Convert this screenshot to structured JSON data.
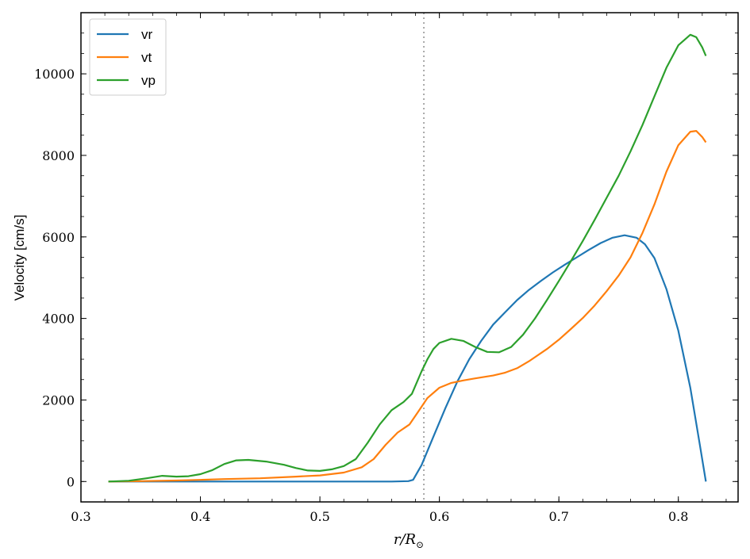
{
  "chart_data": {
    "type": "line",
    "ylabel": "Velocity [cm/s]",
    "xlabel_main": "r/R",
    "xlabel_sub": "⊙",
    "xlim": [
      0.3,
      0.85
    ],
    "ylim": [
      -500,
      11500
    ],
    "x_ticks": [
      0.3,
      0.4,
      0.5,
      0.6,
      0.7,
      0.8
    ],
    "x_tick_labels": [
      "0.3",
      "0.4",
      "0.5",
      "0.6",
      "0.7",
      "0.8"
    ],
    "x_minor_step": 0.02,
    "y_ticks": [
      0,
      2000,
      4000,
      6000,
      8000,
      10000
    ],
    "y_tick_labels": [
      "0",
      "2000",
      "4000",
      "6000",
      "8000",
      "10000"
    ],
    "y_minor_step": 500,
    "vline": {
      "x": 0.587,
      "color": "#a9a9a9",
      "style": "dotted"
    },
    "legend": {
      "position": "top-left"
    },
    "grid": false,
    "series": [
      {
        "name": "vr",
        "color": "#1f77b4",
        "points": [
          [
            0.323,
            0
          ],
          [
            0.4,
            0
          ],
          [
            0.5,
            0
          ],
          [
            0.56,
            0
          ],
          [
            0.574,
            10
          ],
          [
            0.578,
            40
          ],
          [
            0.585,
            400
          ],
          [
            0.595,
            1100
          ],
          [
            0.605,
            1800
          ],
          [
            0.615,
            2450
          ],
          [
            0.625,
            3000
          ],
          [
            0.635,
            3450
          ],
          [
            0.645,
            3850
          ],
          [
            0.655,
            4150
          ],
          [
            0.665,
            4450
          ],
          [
            0.675,
            4700
          ],
          [
            0.685,
            4920
          ],
          [
            0.695,
            5130
          ],
          [
            0.705,
            5320
          ],
          [
            0.715,
            5500
          ],
          [
            0.725,
            5680
          ],
          [
            0.735,
            5850
          ],
          [
            0.745,
            5980
          ],
          [
            0.755,
            6040
          ],
          [
            0.765,
            5980
          ],
          [
            0.772,
            5820
          ],
          [
            0.78,
            5480
          ],
          [
            0.79,
            4720
          ],
          [
            0.8,
            3700
          ],
          [
            0.81,
            2300
          ],
          [
            0.818,
            900
          ],
          [
            0.823,
            0
          ]
        ]
      },
      {
        "name": "vt",
        "color": "#ff7f0e",
        "points": [
          [
            0.323,
            0
          ],
          [
            0.35,
            10
          ],
          [
            0.38,
            25
          ],
          [
            0.4,
            40
          ],
          [
            0.42,
            60
          ],
          [
            0.45,
            80
          ],
          [
            0.48,
            120
          ],
          [
            0.5,
            150
          ],
          [
            0.52,
            220
          ],
          [
            0.535,
            350
          ],
          [
            0.545,
            550
          ],
          [
            0.555,
            900
          ],
          [
            0.565,
            1200
          ],
          [
            0.575,
            1400
          ],
          [
            0.582,
            1700
          ],
          [
            0.59,
            2050
          ],
          [
            0.6,
            2300
          ],
          [
            0.61,
            2420
          ],
          [
            0.62,
            2480
          ],
          [
            0.63,
            2530
          ],
          [
            0.645,
            2600
          ],
          [
            0.655,
            2670
          ],
          [
            0.665,
            2780
          ],
          [
            0.675,
            2950
          ],
          [
            0.69,
            3250
          ],
          [
            0.7,
            3480
          ],
          [
            0.71,
            3740
          ],
          [
            0.72,
            4010
          ],
          [
            0.73,
            4320
          ],
          [
            0.74,
            4670
          ],
          [
            0.75,
            5050
          ],
          [
            0.76,
            5500
          ],
          [
            0.77,
            6100
          ],
          [
            0.78,
            6800
          ],
          [
            0.79,
            7600
          ],
          [
            0.8,
            8250
          ],
          [
            0.81,
            8580
          ],
          [
            0.815,
            8600
          ],
          [
            0.82,
            8450
          ],
          [
            0.823,
            8320
          ]
        ]
      },
      {
        "name": "vp",
        "color": "#2ca02c",
        "points": [
          [
            0.323,
            0
          ],
          [
            0.34,
            20
          ],
          [
            0.355,
            80
          ],
          [
            0.368,
            140
          ],
          [
            0.38,
            120
          ],
          [
            0.39,
            130
          ],
          [
            0.4,
            180
          ],
          [
            0.41,
            280
          ],
          [
            0.42,
            430
          ],
          [
            0.43,
            520
          ],
          [
            0.44,
            530
          ],
          [
            0.455,
            490
          ],
          [
            0.47,
            410
          ],
          [
            0.48,
            330
          ],
          [
            0.49,
            270
          ],
          [
            0.5,
            260
          ],
          [
            0.51,
            300
          ],
          [
            0.52,
            380
          ],
          [
            0.53,
            550
          ],
          [
            0.54,
            950
          ],
          [
            0.55,
            1400
          ],
          [
            0.56,
            1750
          ],
          [
            0.57,
            1950
          ],
          [
            0.577,
            2150
          ],
          [
            0.585,
            2700
          ],
          [
            0.59,
            3000
          ],
          [
            0.595,
            3250
          ],
          [
            0.6,
            3400
          ],
          [
            0.61,
            3500
          ],
          [
            0.62,
            3450
          ],
          [
            0.63,
            3300
          ],
          [
            0.64,
            3180
          ],
          [
            0.65,
            3170
          ],
          [
            0.66,
            3300
          ],
          [
            0.67,
            3600
          ],
          [
            0.68,
            4000
          ],
          [
            0.69,
            4450
          ],
          [
            0.7,
            4920
          ],
          [
            0.71,
            5400
          ],
          [
            0.72,
            5900
          ],
          [
            0.73,
            6420
          ],
          [
            0.74,
            6960
          ],
          [
            0.75,
            7500
          ],
          [
            0.76,
            8100
          ],
          [
            0.77,
            8750
          ],
          [
            0.78,
            9450
          ],
          [
            0.79,
            10150
          ],
          [
            0.8,
            10700
          ],
          [
            0.81,
            10960
          ],
          [
            0.815,
            10900
          ],
          [
            0.82,
            10650
          ],
          [
            0.823,
            10440
          ]
        ]
      }
    ]
  }
}
